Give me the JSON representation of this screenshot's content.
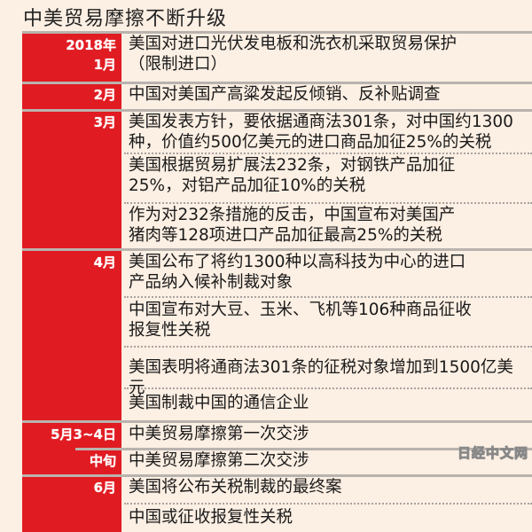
{
  "title": "中美贸易摩擦不断升级",
  "watermark": "日经中文网",
  "colors": {
    "accent": "#e01b22",
    "background": "#fcefe3"
  },
  "rows": [
    {
      "date": "2018年\n1月",
      "items": [
        "美国对进口光伏发电板和洗衣机采取贸易保护\n（限制进口）"
      ]
    },
    {
      "date": "2月",
      "items": [
        "中国对美国产高粱发起反倾销、反补贴调查"
      ]
    },
    {
      "date": "3月",
      "items": [
        "美国发表方针，要依据通商法301条，对中国约1300\n种，价值约500亿美元的进口商品加征25%的关税",
        "美国根据贸易扩展法232条，对钢铁产品加征\n25%，对铝产品加征10%的关税",
        "作为对232条措施的反击，中国宣布对美国产\n猪肉等128项进口产品加征最高25%的关税"
      ]
    },
    {
      "date": "4月",
      "items": [
        "美国公布了将约1300种以高科技为中心的进口\n产品纳入候补制裁对象",
        "中国宣布对大豆、玉米、飞机等106种商品征收\n报复性关税",
        "美国表明将通商法301条的征税对象增加到1500亿美元",
        "美国制裁中国的通信企业"
      ]
    },
    {
      "date": "5月3~4日",
      "items": [
        "中美贸易摩擦第一次交涉"
      ]
    },
    {
      "date": "中旬",
      "items": [
        "中美贸易摩擦第二次交涉"
      ]
    },
    {
      "date": "6月",
      "items": [
        "美国将公布关税制裁的最终案",
        "中国或征收报复性关税"
      ]
    }
  ]
}
